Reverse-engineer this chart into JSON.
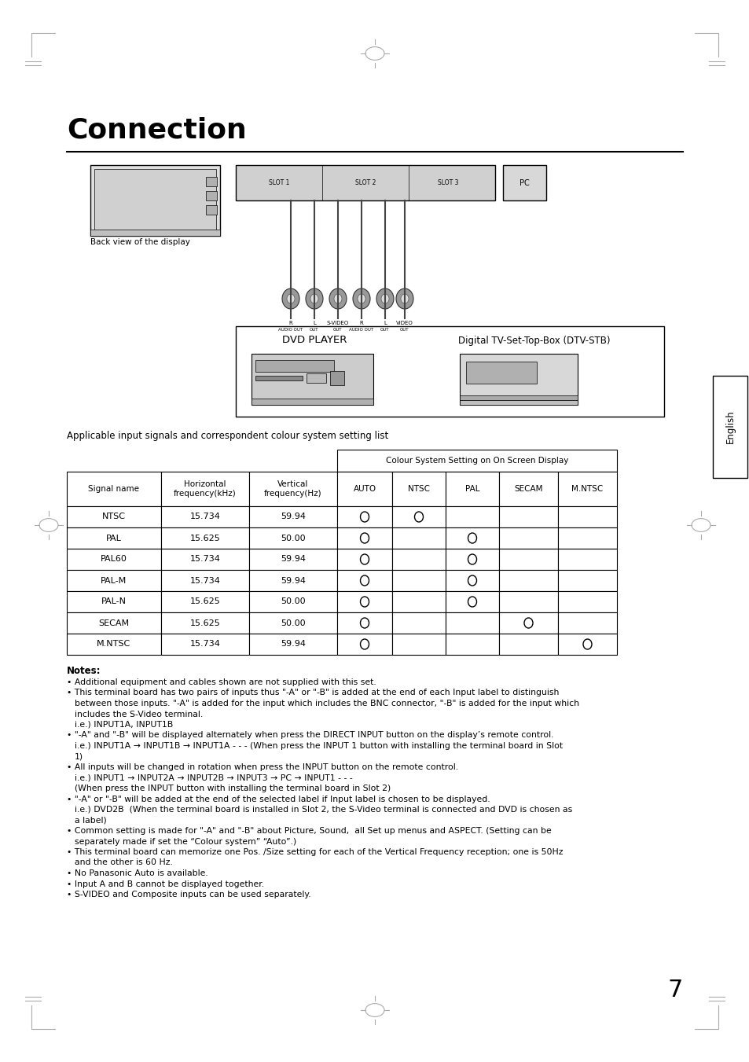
{
  "title": "Connection",
  "page_number": "7",
  "language_tab": "English",
  "table_intro": "Applicable input signals and correspondent colour system setting list",
  "colour_system_header": "Colour System Setting on On Screen Display",
  "table_headers": [
    "Signal name",
    "Horizontal\nfrequency(kHz)",
    "Vertical\nfrequency(Hz)",
    "AUTO",
    "NTSC",
    "PAL",
    "SECAM",
    "M.NTSC"
  ],
  "table_rows": [
    [
      "NTSC",
      "15.734",
      "59.94",
      true,
      true,
      false,
      false,
      false
    ],
    [
      "PAL",
      "15.625",
      "50.00",
      true,
      false,
      true,
      false,
      false
    ],
    [
      "PAL60",
      "15.734",
      "59.94",
      true,
      false,
      true,
      false,
      false
    ],
    [
      "PAL-M",
      "15.734",
      "59.94",
      true,
      false,
      true,
      false,
      false
    ],
    [
      "PAL-N",
      "15.625",
      "50.00",
      true,
      false,
      true,
      false,
      false
    ],
    [
      "SECAM",
      "15.625",
      "50.00",
      true,
      false,
      false,
      true,
      false
    ],
    [
      "M.NTSC",
      "15.734",
      "59.94",
      true,
      false,
      false,
      false,
      true
    ]
  ],
  "notes_title": "Notes:",
  "notes": [
    "Additional equipment and cables shown are not supplied with this set.",
    "This terminal board has two pairs of inputs thus \"-A\" or \"-B\" is added at the end of each Input label to distinguish\nbetween those inputs. \"-A\" is added for the input which includes the BNC connector, \"-B\" is added for the input which\nincludes the S-Video terminal.\ni.e.) INPUT1A, INPUT1B",
    "\"-A\" and \"-B\" will be displayed alternately when press the DIRECT INPUT button on the display’s remote control.\ni.e.) INPUT1A → INPUT1B → INPUT1A - - - (When press the INPUT 1 button with installing the terminal board in Slot\n1)",
    "All inputs will be changed in rotation when press the INPUT button on the remote control.\ni.e.) INPUT1 → INPUT2A → INPUT2B → INPUT3 → PC → INPUT1 - - -\n(When press the INPUT button with installing the terminal board in Slot 2)",
    "\"-A\" or \"-B\" will be added at the end of the selected label if Input label is chosen to be displayed.\ni.e.) DVD2B  (When the terminal board is installed in Slot 2, the S-Video terminal is connected and DVD is chosen as\na label)",
    "Common setting is made for \"-A\" and \"-B\" about Picture, Sound,  all Set up menus and ASPECT. (Setting can be\nseparately made if set the “Colour system” “Auto”.)",
    "This terminal board can memorize one Pos. /Size setting for each of the Vertical Frequency reception; one is 50Hz\nand the other is 60 Hz.",
    "No Panasonic Auto is available.",
    "Input A and B cannot be displayed together.",
    "S-VIDEO and Composite inputs can be used separately."
  ],
  "dvd_label": "DVD PLAYER",
  "dtv_label": "Digital TV-Set-Top-Box (DTV-STB)",
  "back_view_label": "Back view of the display"
}
